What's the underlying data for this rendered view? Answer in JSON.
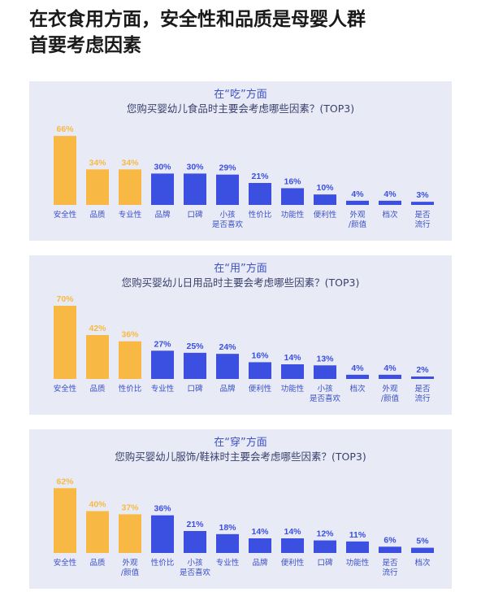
{
  "headline": {
    "line1": "在衣食用方面，安全性和品质是母婴人群",
    "line2": "首要考虑因素"
  },
  "colors": {
    "top3": "#f7b944",
    "other": "#3b4fe0",
    "panel_bg": "#e8ebf6",
    "accent_text": "#3f51c7"
  },
  "panels": [
    {
      "title": "在“吃”方面",
      "question": "您购买婴幼儿食品时主要会考虑哪些因素？(TOP3)"
    },
    {
      "title": "在“用”方面",
      "question": "您购买婴幼儿日用品时主要会考虑哪些因素？(TOP3)"
    },
    {
      "title": "在“穿”方面",
      "question": "您购买婴幼儿服饰/鞋袜时主要会考虑哪些因素？(TOP3)"
    }
  ],
  "chart_data": [
    {
      "type": "bar",
      "title": "在“吃”方面",
      "subtitle": "您购买婴幼儿食品时主要会考虑哪些因素？(TOP3)",
      "categories": [
        "安全性",
        "品质",
        "专业性",
        "品牌",
        "口碑",
        "小孩\n是否喜欢",
        "性价比",
        "功能性",
        "便利性",
        "外观\n/颜值",
        "档次",
        "是否\n流行"
      ],
      "values": [
        66,
        34,
        34,
        30,
        30,
        29,
        21,
        16,
        10,
        4,
        4,
        3
      ],
      "value_labels": [
        "66%",
        "34%",
        "34%",
        "30%",
        "30%",
        "29%",
        "21%",
        "16%",
        "10%",
        "4%",
        "4%",
        "3%"
      ],
      "highlight_count": 3
    },
    {
      "type": "bar",
      "title": "在“用”方面",
      "subtitle": "您购买婴幼儿日用品时主要会考虑哪些因素？(TOP3)",
      "categories": [
        "安全性",
        "品质",
        "性价比",
        "专业性",
        "口碑",
        "品牌",
        "便利性",
        "功能性",
        "小孩\n是否喜欢",
        "档次",
        "外观\n/颜值",
        "是否\n流行"
      ],
      "values": [
        70,
        42,
        36,
        27,
        25,
        24,
        16,
        14,
        13,
        4,
        4,
        2
      ],
      "value_labels": [
        "70%",
        "42%",
        "36%",
        "27%",
        "25%",
        "24%",
        "16%",
        "14%",
        "13%",
        "4%",
        "4%",
        "2%"
      ],
      "highlight_count": 3
    },
    {
      "type": "bar",
      "title": "在“穿”方面",
      "subtitle": "您购买婴幼儿服饰/鞋袜时主要会考虑哪些因素？(TOP3)",
      "categories": [
        "安全性",
        "品质",
        "外观\n/颜值",
        "性价比",
        "小孩\n是否喜欢",
        "专业性",
        "品牌",
        "便利性",
        "口碑",
        "功能性",
        "是否\n流行",
        "档次"
      ],
      "values": [
        62,
        40,
        37,
        36,
        21,
        18,
        14,
        14,
        12,
        11,
        6,
        5
      ],
      "value_labels": [
        "62%",
        "40%",
        "37%",
        "36%",
        "21%",
        "18%",
        "14%",
        "14%",
        "12%",
        "11%",
        "6%",
        "5%"
      ],
      "highlight_count": 3
    }
  ]
}
